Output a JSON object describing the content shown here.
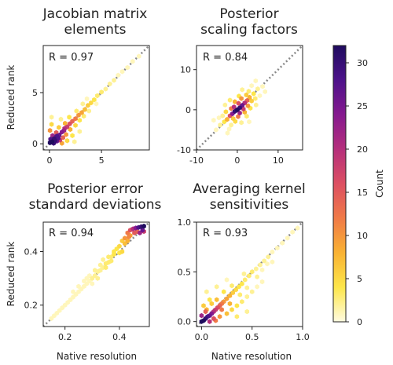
{
  "figure": {
    "colorbar": {
      "label": "Count",
      "ticks": [
        0,
        5,
        10,
        15,
        20,
        25,
        30
      ],
      "range": [
        0,
        32
      ],
      "colors": [
        "#fffbe0",
        "#fde64a",
        "#f9b233",
        "#f07a47",
        "#dc4f62",
        "#b52f7c",
        "#85198f",
        "#4d128a",
        "#1f0c5e"
      ]
    },
    "diagonal_color": "#888888"
  },
  "chart_data": [
    {
      "type": "scatter",
      "subtype": "hexbin-density",
      "title": [
        "Jacobian matrix",
        "elements"
      ],
      "r_label": "R = 0.97",
      "xlabel": "",
      "ylabel": "Reduced rank",
      "xlim": [
        -0.6,
        9.6
      ],
      "ylim": [
        -0.6,
        9.6
      ],
      "xticks": [
        0,
        5
      ],
      "yticks": [
        0,
        5
      ],
      "diagonal": true,
      "points": [
        [
          0.05,
          0.1,
          32
        ],
        [
          0.25,
          0.2,
          32
        ],
        [
          0.45,
          0.5,
          30
        ],
        [
          0.7,
          0.75,
          28
        ],
        [
          0.95,
          0.85,
          26
        ],
        [
          1.2,
          1.15,
          24
        ],
        [
          1.45,
          1.5,
          20
        ],
        [
          1.7,
          1.65,
          18
        ],
        [
          1.95,
          1.95,
          16
        ],
        [
          2.2,
          2.2,
          14
        ],
        [
          2.5,
          2.45,
          12
        ],
        [
          2.8,
          2.8,
          10
        ],
        [
          3.1,
          3.05,
          9
        ],
        [
          3.4,
          3.35,
          7
        ],
        [
          3.7,
          3.75,
          6
        ],
        [
          4.0,
          4.0,
          5
        ],
        [
          4.3,
          4.3,
          4
        ],
        [
          4.6,
          4.7,
          3
        ],
        [
          5.0,
          5.05,
          3
        ],
        [
          5.4,
          5.35,
          2
        ],
        [
          5.8,
          5.85,
          2
        ],
        [
          6.2,
          6.2,
          2
        ],
        [
          6.6,
          6.7,
          1
        ],
        [
          7.0,
          7.05,
          1
        ],
        [
          7.5,
          7.45,
          1
        ],
        [
          8.0,
          8.05,
          1
        ],
        [
          8.6,
          8.55,
          1
        ],
        [
          0.4,
          0.05,
          30
        ],
        [
          0.7,
          0.25,
          26
        ],
        [
          0.1,
          0.45,
          28
        ],
        [
          0.3,
          0.8,
          22
        ],
        [
          1.0,
          0.35,
          18
        ],
        [
          1.3,
          0.6,
          14
        ],
        [
          0.65,
          1.1,
          15
        ],
        [
          1.6,
          0.9,
          10
        ],
        [
          2.0,
          1.4,
          8
        ],
        [
          1.5,
          2.0,
          8
        ],
        [
          2.5,
          1.8,
          5
        ],
        [
          2.9,
          2.3,
          4
        ],
        [
          1.9,
          2.6,
          4
        ],
        [
          0.9,
          1.6,
          6
        ],
        [
          2.2,
          0.8,
          4
        ],
        [
          1.2,
          0.05,
          9
        ],
        [
          0.05,
          1.3,
          10
        ],
        [
          3.3,
          2.7,
          3
        ],
        [
          2.6,
          3.2,
          3
        ],
        [
          1.7,
          0.3,
          5
        ],
        [
          0.2,
          1.9,
          5
        ],
        [
          2.9,
          1.2,
          2
        ],
        [
          1.1,
          2.4,
          2
        ],
        [
          3.8,
          3.2,
          2
        ],
        [
          3.2,
          3.9,
          2
        ],
        [
          4.5,
          3.9,
          1
        ],
        [
          3.6,
          4.4,
          1
        ],
        [
          2.4,
          0.2,
          2
        ],
        [
          0.2,
          2.6,
          2
        ],
        [
          1.4,
          1.3,
          22
        ],
        [
          0.55,
          0.3,
          30
        ],
        [
          0.85,
          0.55,
          28
        ]
      ]
    },
    {
      "type": "scatter",
      "subtype": "hexbin-density",
      "title": [
        "Posterior",
        "scaling factors"
      ],
      "r_label": "R = 0.84",
      "xlabel": "",
      "ylabel": "",
      "xlim": [
        -10,
        16
      ],
      "ylim": [
        -10,
        16
      ],
      "xticks": [
        -10,
        0,
        10
      ],
      "yticks": [
        -10,
        0,
        10
      ],
      "diagonal": true,
      "points": [
        [
          0,
          0,
          32
        ],
        [
          0.6,
          0.5,
          30
        ],
        [
          -0.6,
          -0.4,
          30
        ],
        [
          1.2,
          1.1,
          26
        ],
        [
          -1.2,
          -1.0,
          24
        ],
        [
          1.8,
          1.7,
          20
        ],
        [
          -1.8,
          -1.5,
          16
        ],
        [
          2.4,
          2.3,
          14
        ],
        [
          0.6,
          -0.8,
          22
        ],
        [
          -0.8,
          0.7,
          20
        ],
        [
          1.5,
          0.2,
          18
        ],
        [
          0.3,
          1.6,
          16
        ],
        [
          -1.5,
          0.3,
          12
        ],
        [
          0.2,
          -1.7,
          12
        ],
        [
          2.6,
          1.0,
          10
        ],
        [
          1.0,
          2.8,
          10
        ],
        [
          3.0,
          3.1,
          8
        ],
        [
          -2.5,
          -2.4,
          8
        ],
        [
          3.5,
          2.2,
          6
        ],
        [
          2.2,
          3.7,
          6
        ],
        [
          -2.8,
          -0.5,
          5
        ],
        [
          -0.5,
          -2.9,
          5
        ],
        [
          4.0,
          4.0,
          4
        ],
        [
          -3.2,
          -3.0,
          4
        ],
        [
          4.4,
          2.8,
          3
        ],
        [
          2.8,
          4.6,
          3
        ],
        [
          -3.6,
          -1.5,
          2
        ],
        [
          -1.5,
          -3.8,
          2
        ],
        [
          5.0,
          5.2,
          2
        ],
        [
          -4.2,
          -3.8,
          2
        ],
        [
          5.5,
          3.5,
          1
        ],
        [
          3.5,
          6.0,
          1
        ],
        [
          -4.5,
          -2.0,
          1
        ],
        [
          -2.0,
          -4.8,
          1
        ],
        [
          6.2,
          5.8,
          1
        ],
        [
          -5.2,
          -5.0,
          1
        ],
        [
          1.8,
          -0.6,
          8
        ],
        [
          -0.6,
          2.0,
          8
        ],
        [
          -1.0,
          -2.2,
          6
        ],
        [
          2.3,
          -1.6,
          3
        ],
        [
          -1.8,
          2.4,
          3
        ],
        [
          3.2,
          0.4,
          4
        ],
        [
          0.4,
          3.4,
          4
        ],
        [
          4.6,
          1.2,
          2
        ],
        [
          1.2,
          5.0,
          2
        ],
        [
          -3.0,
          1.2,
          2
        ],
        [
          1.0,
          -3.2,
          2
        ],
        [
          6.8,
          4.5,
          1
        ],
        [
          4.5,
          7.2,
          1
        ],
        [
          -2.4,
          -5.8,
          1
        ],
        [
          -5.8,
          -2.6,
          1
        ],
        [
          2.9,
          -3.0,
          1
        ]
      ]
    },
    {
      "type": "scatter",
      "subtype": "hexbin-density",
      "title": [
        "Posterior error",
        "standard deviations"
      ],
      "r_label": "R = 0.94",
      "xlabel": "Native resolution",
      "ylabel": "Reduced rank",
      "xlim": [
        0.12,
        0.51
      ],
      "ylim": [
        0.12,
        0.51
      ],
      "xticks": [
        0.2,
        0.4
      ],
      "yticks": [
        0.2,
        0.4
      ],
      "diagonal": true,
      "points": [
        [
          0.49,
          0.495,
          32
        ],
        [
          0.48,
          0.493,
          30
        ],
        [
          0.47,
          0.49,
          28
        ],
        [
          0.46,
          0.488,
          24
        ],
        [
          0.45,
          0.485,
          20
        ],
        [
          0.44,
          0.48,
          16
        ],
        [
          0.43,
          0.47,
          12
        ],
        [
          0.485,
          0.48,
          26
        ],
        [
          0.475,
          0.47,
          22
        ],
        [
          0.49,
          0.475,
          18
        ],
        [
          0.465,
          0.475,
          14
        ],
        [
          0.42,
          0.45,
          10
        ],
        [
          0.43,
          0.44,
          8
        ],
        [
          0.41,
          0.44,
          6
        ],
        [
          0.4,
          0.42,
          5
        ],
        [
          0.39,
          0.41,
          4
        ],
        [
          0.38,
          0.39,
          4
        ],
        [
          0.37,
          0.38,
          3
        ],
        [
          0.36,
          0.36,
          3
        ],
        [
          0.35,
          0.355,
          3
        ],
        [
          0.34,
          0.34,
          2
        ],
        [
          0.33,
          0.33,
          2
        ],
        [
          0.32,
          0.325,
          2
        ],
        [
          0.31,
          0.31,
          2
        ],
        [
          0.3,
          0.3,
          2
        ],
        [
          0.29,
          0.29,
          1
        ],
        [
          0.28,
          0.28,
          1
        ],
        [
          0.27,
          0.27,
          1
        ],
        [
          0.26,
          0.26,
          1
        ],
        [
          0.25,
          0.25,
          1
        ],
        [
          0.24,
          0.24,
          1
        ],
        [
          0.23,
          0.23,
          1
        ],
        [
          0.22,
          0.22,
          1
        ],
        [
          0.21,
          0.21,
          1
        ],
        [
          0.2,
          0.2,
          1
        ],
        [
          0.19,
          0.19,
          1
        ],
        [
          0.18,
          0.18,
          1
        ],
        [
          0.17,
          0.17,
          1
        ],
        [
          0.16,
          0.16,
          1
        ],
        [
          0.15,
          0.15,
          1
        ],
        [
          0.44,
          0.46,
          9
        ],
        [
          0.42,
          0.43,
          7
        ],
        [
          0.41,
          0.4,
          5
        ],
        [
          0.38,
          0.4,
          4
        ],
        [
          0.36,
          0.38,
          3
        ],
        [
          0.35,
          0.34,
          3
        ],
        [
          0.33,
          0.35,
          2
        ],
        [
          0.31,
          0.33,
          2
        ],
        [
          0.29,
          0.31,
          1
        ],
        [
          0.27,
          0.29,
          1
        ],
        [
          0.25,
          0.27,
          1
        ],
        [
          0.23,
          0.25,
          1
        ],
        [
          0.34,
          0.37,
          2
        ],
        [
          0.32,
          0.3,
          2
        ],
        [
          0.3,
          0.28,
          1
        ],
        [
          0.28,
          0.3,
          1
        ],
        [
          0.455,
          0.47,
          15
        ],
        [
          0.435,
          0.455,
          11
        ],
        [
          0.4,
          0.395,
          4
        ],
        [
          0.37,
          0.365,
          3
        ]
      ]
    },
    {
      "type": "scatter",
      "subtype": "hexbin-density",
      "title": [
        "Averaging kernel",
        "sensitivities"
      ],
      "r_label": "R = 0.93",
      "xlabel": "Native resolution",
      "ylabel": "",
      "xlim": [
        -0.05,
        1.0
      ],
      "ylim": [
        -0.05,
        1.0
      ],
      "xticks": [
        0.0,
        0.5,
        1.0
      ],
      "yticks": [
        0.0,
        0.5,
        1.0
      ],
      "diagonal": true,
      "points": [
        [
          0.0,
          0.0,
          32
        ],
        [
          0.02,
          0.01,
          32
        ],
        [
          0.04,
          0.03,
          30
        ],
        [
          0.06,
          0.05,
          28
        ],
        [
          0.08,
          0.06,
          26
        ],
        [
          0.1,
          0.08,
          24
        ],
        [
          0.12,
          0.1,
          20
        ],
        [
          0.14,
          0.12,
          18
        ],
        [
          0.16,
          0.14,
          16
        ],
        [
          0.18,
          0.16,
          14
        ],
        [
          0.2,
          0.18,
          12
        ],
        [
          0.22,
          0.2,
          10
        ],
        [
          0.25,
          0.23,
          9
        ],
        [
          0.28,
          0.26,
          8
        ],
        [
          0.31,
          0.29,
          6
        ],
        [
          0.34,
          0.32,
          5
        ],
        [
          0.37,
          0.35,
          4
        ],
        [
          0.4,
          0.38,
          4
        ],
        [
          0.43,
          0.42,
          3
        ],
        [
          0.47,
          0.46,
          3
        ],
        [
          0.5,
          0.5,
          3
        ],
        [
          0.54,
          0.53,
          2
        ],
        [
          0.58,
          0.57,
          2
        ],
        [
          0.62,
          0.61,
          2
        ],
        [
          0.66,
          0.65,
          2
        ],
        [
          0.7,
          0.7,
          1
        ],
        [
          0.75,
          0.74,
          1
        ],
        [
          0.8,
          0.79,
          1
        ],
        [
          0.85,
          0.84,
          1
        ],
        [
          0.9,
          0.9,
          1
        ],
        [
          0.95,
          0.94,
          1
        ],
        [
          0.12,
          0.03,
          16
        ],
        [
          0.18,
          0.05,
          10
        ],
        [
          0.25,
          0.08,
          7
        ],
        [
          0.3,
          0.12,
          5
        ],
        [
          0.35,
          0.16,
          4
        ],
        [
          0.4,
          0.2,
          3
        ],
        [
          0.45,
          0.25,
          2
        ],
        [
          0.5,
          0.3,
          2
        ],
        [
          0.55,
          0.35,
          1
        ],
        [
          0.6,
          0.4,
          1
        ],
        [
          0.2,
          0.12,
          12
        ],
        [
          0.28,
          0.18,
          8
        ],
        [
          0.15,
          0.22,
          7
        ],
        [
          0.1,
          0.18,
          6
        ],
        [
          0.05,
          0.12,
          8
        ],
        [
          0.08,
          0.22,
          4
        ],
        [
          0.22,
          0.3,
          4
        ],
        [
          0.3,
          0.36,
          3
        ],
        [
          0.38,
          0.27,
          3
        ],
        [
          0.45,
          0.34,
          2
        ],
        [
          0.42,
          0.48,
          2
        ],
        [
          0.55,
          0.45,
          2
        ],
        [
          0.6,
          0.52,
          1
        ],
        [
          0.65,
          0.58,
          1
        ],
        [
          0.35,
          0.05,
          3
        ],
        [
          0.45,
          0.1,
          2
        ],
        [
          0.05,
          0.3,
          2
        ],
        [
          0.15,
          0.35,
          2
        ],
        [
          0.7,
          0.6,
          1
        ],
        [
          0.25,
          0.42,
          1
        ],
        [
          0.08,
          0.0,
          20
        ],
        [
          0.14,
          0.01,
          12
        ],
        [
          0.0,
          0.06,
          22
        ],
        [
          0.04,
          0.1,
          14
        ],
        [
          0.02,
          0.16,
          6
        ]
      ]
    }
  ]
}
